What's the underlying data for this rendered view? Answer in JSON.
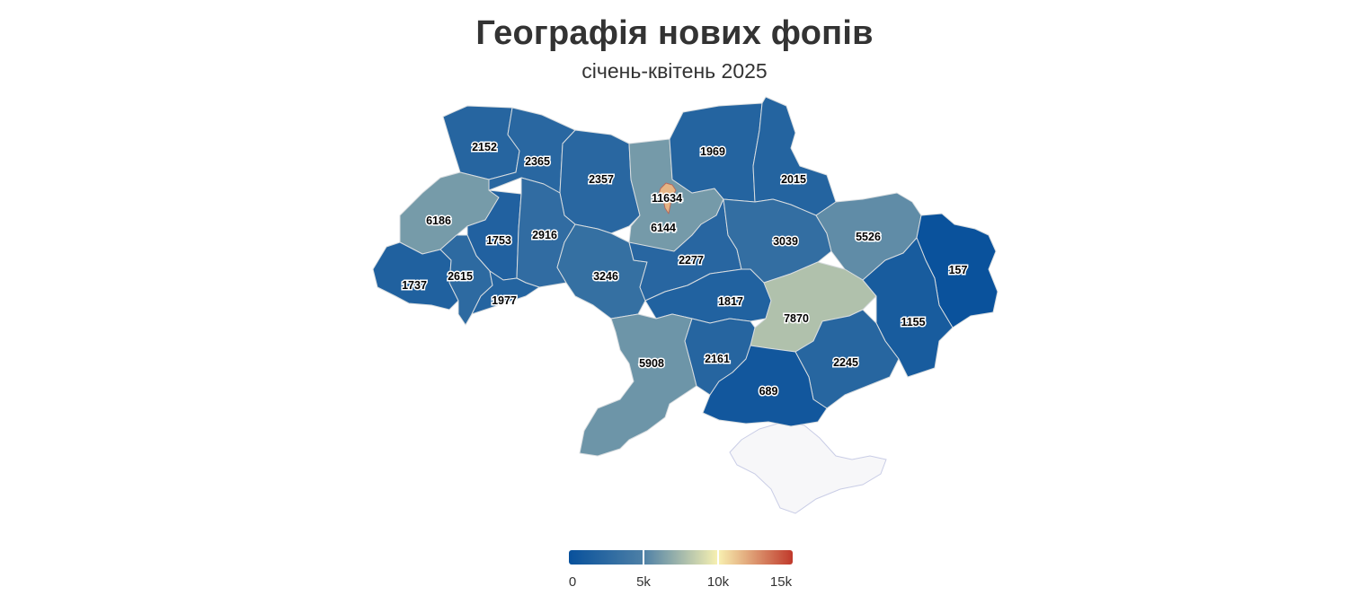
{
  "title": "Географія нових фопів",
  "subtitle": "січень-квітень 2025",
  "legend": {
    "min": 0,
    "max": 15000,
    "ticks": [
      {
        "value": 0,
        "label": "0"
      },
      {
        "value": 5000,
        "label": "5k"
      },
      {
        "value": 10000,
        "label": "10k"
      },
      {
        "value": 15000,
        "label": "15k"
      }
    ],
    "color_stops": [
      "#08519c",
      "#4e80a6",
      "#f8f1b1",
      "#c0392b"
    ]
  },
  "regions": [
    {
      "key": "volyn",
      "value": 2152
    },
    {
      "key": "rivne",
      "value": 2365
    },
    {
      "key": "zhytomyr",
      "value": 2357
    },
    {
      "key": "kyiv_region",
      "value": 6144
    },
    {
      "key": "kyiv_city",
      "value": 11634
    },
    {
      "key": "chernihiv",
      "value": 1969
    },
    {
      "key": "sumy",
      "value": 2015
    },
    {
      "key": "lviv",
      "value": 6186
    },
    {
      "key": "ternopil",
      "value": 1753
    },
    {
      "key": "khmelnytskyi",
      "value": 2916
    },
    {
      "key": "vinnytsia",
      "value": 3246
    },
    {
      "key": "cherkasy",
      "value": 2277
    },
    {
      "key": "poltava",
      "value": 3039
    },
    {
      "key": "kharkiv",
      "value": 5526
    },
    {
      "key": "luhansk",
      "value": 157
    },
    {
      "key": "zakarpattia",
      "value": 1737
    },
    {
      "key": "ivano_frankivsk",
      "value": 2615
    },
    {
      "key": "chernivtsi",
      "value": 1977
    },
    {
      "key": "kirovohrad",
      "value": 1817
    },
    {
      "key": "dnipropetrovsk",
      "value": 7870
    },
    {
      "key": "donetsk",
      "value": 1155
    },
    {
      "key": "odesa",
      "value": 5908
    },
    {
      "key": "mykolaiv",
      "value": 2161
    },
    {
      "key": "zaporizhzhia",
      "value": 2245
    },
    {
      "key": "kherson",
      "value": 689
    }
  ]
}
